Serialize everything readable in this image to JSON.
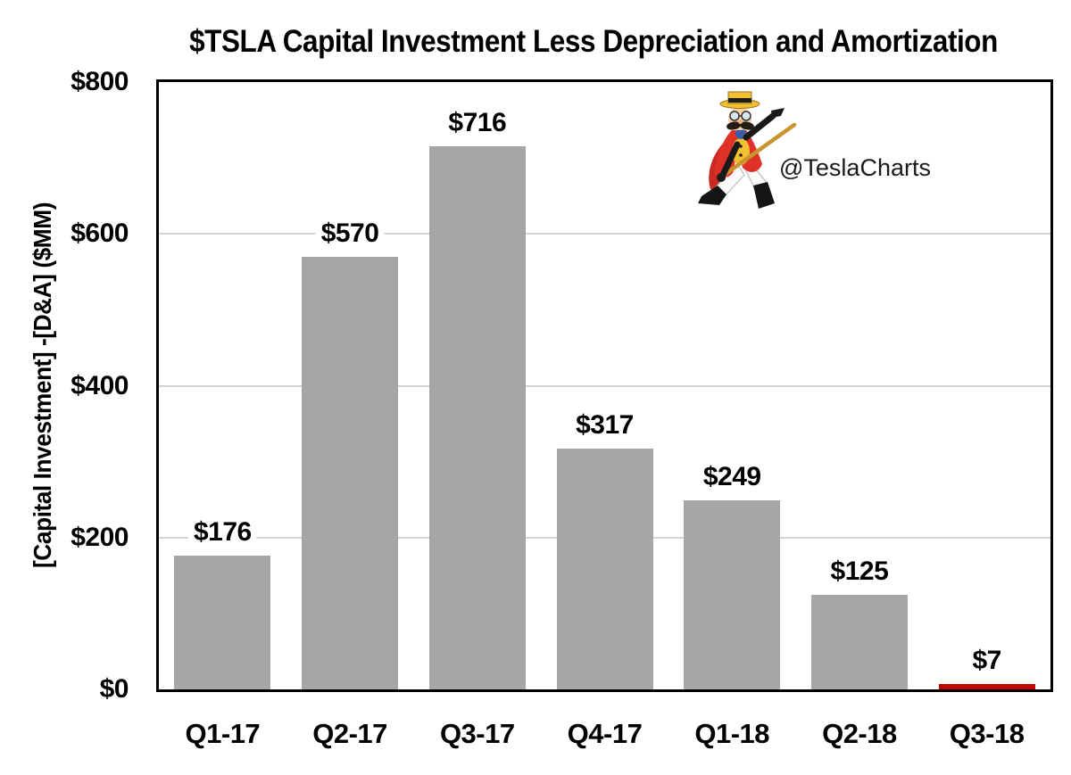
{
  "chart_data": {
    "type": "bar",
    "title": "$TSLA Capital Investment Less Depreciation and Amortization",
    "ylabel": "[Capital Investment] -[D&A] ($MM)",
    "xlabel": "",
    "categories": [
      "Q1-17",
      "Q2-17",
      "Q3-17",
      "Q4-17",
      "Q1-18",
      "Q2-18",
      "Q3-18"
    ],
    "values": [
      176,
      570,
      716,
      317,
      249,
      125,
      7
    ],
    "value_labels": [
      "$176",
      "$570",
      "$716",
      "$317",
      "$249",
      "$125",
      "$7"
    ],
    "ylim": [
      0,
      800
    ],
    "yticks": [
      0,
      200,
      400,
      600,
      800
    ],
    "ytick_labels": [
      "$0",
      "$200",
      "$400",
      "$600",
      "$800"
    ],
    "grid": true,
    "legend": "none",
    "colors": {
      "bar_default": "#a6a6a6",
      "bar_highlight": "#c00000",
      "gridline": "#d4d4d4",
      "axis_frame": "#000000"
    },
    "highlight_index": 6
  },
  "watermark": {
    "handle": "@TeslaCharts",
    "mascot": "teslacharts-barker-mascot"
  }
}
